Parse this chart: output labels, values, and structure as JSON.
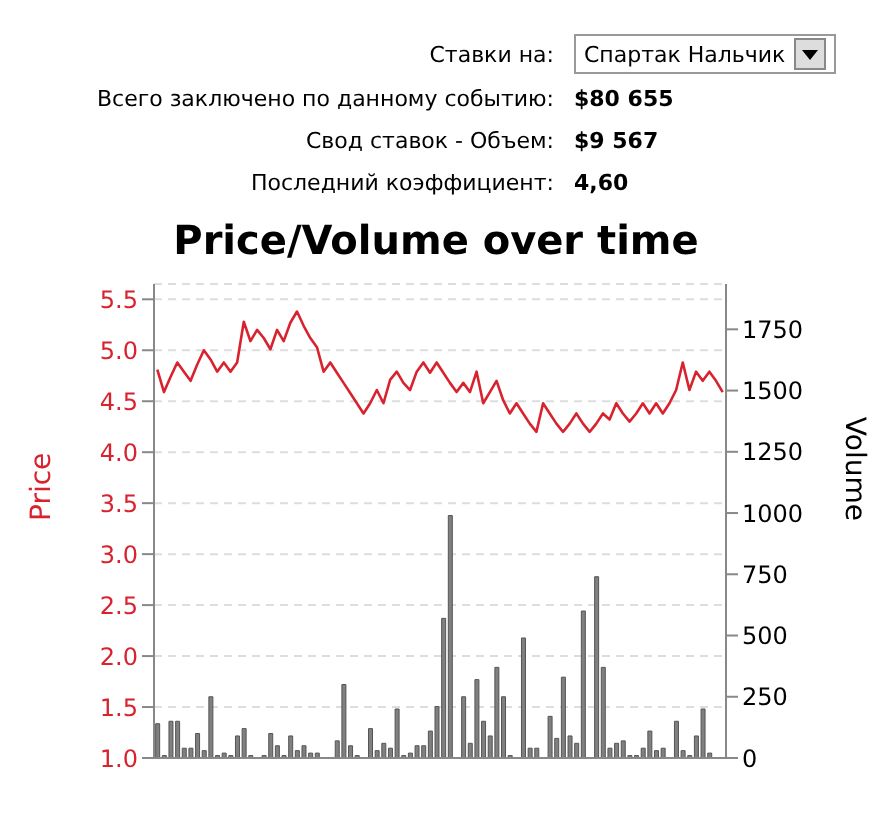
{
  "chart_data": {
    "type": "bar",
    "title": "Price/Volume over time",
    "ylabel": "Price",
    "y2label": "Volume",
    "annotations": [
      "Ставки на:",
      "Спартак Нальчик",
      "Всего заключено по данному событию:",
      "$80 655",
      "Свод ставок - Объем:",
      "$9 567",
      "Последний коэффициент:",
      "4,60"
    ],
    "categories": [
      null,
      null,
      null,
      null,
      null,
      null,
      null,
      null,
      null,
      null,
      null,
      null,
      null,
      null,
      null,
      null,
      null,
      null,
      null,
      null,
      null,
      null,
      null,
      null,
      null,
      null,
      null,
      null,
      null,
      null,
      null,
      null,
      null,
      null,
      null,
      null,
      null,
      null,
      null,
      null,
      null,
      null,
      null,
      null,
      null,
      null,
      null,
      null,
      null,
      null,
      null,
      null,
      null,
      null,
      null,
      null,
      null,
      null,
      null,
      null,
      null,
      null,
      null,
      null,
      null,
      null,
      null,
      null,
      null,
      null,
      null,
      null,
      null,
      null,
      null,
      null,
      null,
      null,
      null,
      null,
      null,
      null,
      null,
      null,
      null,
      null
    ],
    "series": [
      {
        "type": "line",
        "color": "#d8232f",
        "values": [
          4.81,
          4.59,
          4.74,
          4.88,
          4.79,
          4.7,
          4.86,
          5.0,
          4.91,
          4.79,
          4.88,
          4.79,
          4.88,
          5.28,
          5.09,
          5.2,
          5.12,
          5.01,
          5.2,
          5.09,
          5.27,
          5.38,
          5.24,
          5.12,
          5.03,
          4.79,
          4.88,
          4.78,
          4.68,
          4.58,
          4.48,
          4.38,
          4.48,
          4.61,
          4.48,
          4.71,
          4.79,
          4.68,
          4.61,
          4.79,
          4.88,
          4.78,
          4.88,
          4.78,
          4.68,
          4.59,
          4.68,
          4.59,
          4.79,
          4.48,
          4.59,
          4.7,
          4.51,
          4.38,
          4.48,
          4.38,
          4.28,
          4.2,
          4.48,
          4.38,
          4.28,
          4.2,
          4.28,
          4.38,
          4.28,
          4.2,
          4.28,
          4.38,
          4.32,
          4.48,
          4.38,
          4.3,
          4.38,
          4.48,
          4.38,
          4.48,
          4.38,
          4.48,
          4.61,
          4.88,
          4.61,
          4.79,
          4.7,
          4.79,
          4.7,
          4.59
        ]
      },
      {
        "axis": "y2",
        "color": "#808080",
        "values": [
          140,
          10,
          150,
          150,
          40,
          40,
          100,
          30,
          250,
          10,
          20,
          10,
          90,
          120,
          10,
          0,
          10,
          100,
          50,
          10,
          90,
          30,
          50,
          20,
          20,
          0,
          0,
          70,
          300,
          50,
          10,
          0,
          120,
          30,
          60,
          40,
          200,
          10,
          20,
          50,
          50,
          110,
          210,
          570,
          990,
          0,
          250,
          60,
          320,
          150,
          90,
          370,
          250,
          10,
          0,
          490,
          40,
          40,
          0,
          170,
          80,
          330,
          90,
          60,
          600,
          0,
          740,
          370,
          40,
          60,
          70,
          10,
          10,
          40,
          110,
          30,
          40,
          0,
          150,
          30,
          10,
          90,
          200,
          20,
          0,
          0
        ]
      }
    ],
    "ylim": [
      1,
      5.65
    ],
    "yticks": [
      {
        "value": 1,
        "label": "1.0"
      },
      1.5,
      {
        "value": 2,
        "label": "2.0"
      },
      2.5,
      {
        "value": 3,
        "label": "3.0"
      },
      3.5,
      {
        "value": 4,
        "label": "4.0"
      },
      4.5,
      {
        "value": 5,
        "label": "5.0"
      },
      5.5
    ],
    "y2lim": [
      0,
      1935
    ],
    "y2ticks": [
      0,
      250,
      500,
      750,
      1000,
      1250,
      1500,
      1750
    ],
    "grid": "y",
    "legend": false,
    "tick_labels": "y",
    "marker": "none",
    "line_style": "solid"
  }
}
